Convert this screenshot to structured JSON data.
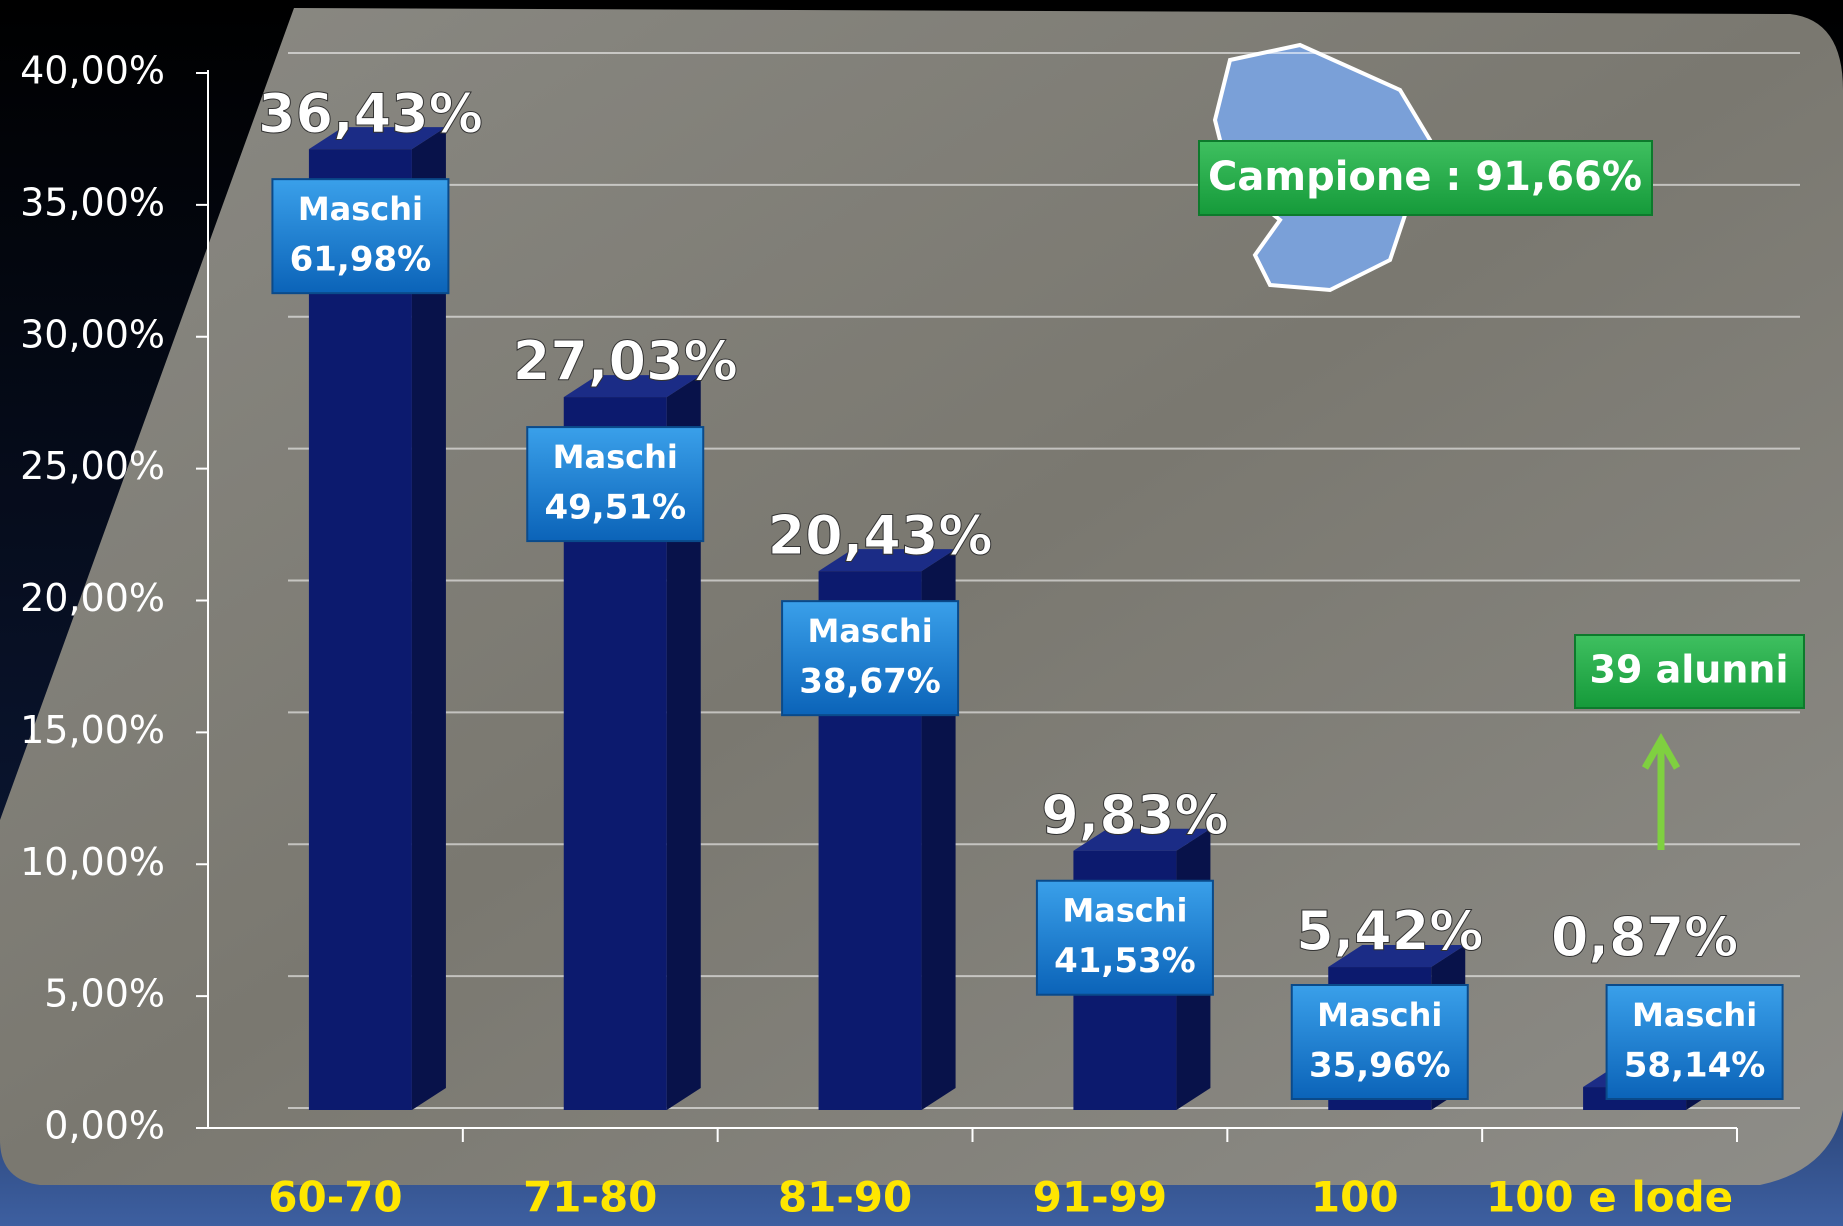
{
  "chart_data": {
    "type": "bar3d",
    "categories": [
      "60-70",
      "71-80",
      "81-90",
      "91-99",
      "100",
      "100 e lode"
    ],
    "values": [
      36.43,
      27.03,
      20.43,
      9.83,
      5.42,
      0.87
    ],
    "value_labels": [
      "36,43%",
      "27,03%",
      "20,43%",
      "9,83%",
      "5,42%",
      "0,87%"
    ],
    "color": "#0c1a6e",
    "males": {
      "name": "Maschi",
      "values": [
        61.98,
        49.51,
        38.67,
        41.53,
        35.96,
        58.14
      ],
      "value_labels": [
        "61,98%",
        "49,51%",
        "38,67%",
        "41,53%",
        "35,96%",
        "58,14%"
      ]
    },
    "ylim": [
      0,
      40
    ],
    "yticks": [
      {
        "value": 0,
        "label": "0,00%"
      },
      {
        "value": 5,
        "label": "5,00%"
      },
      {
        "value": 10,
        "label": "10,00%"
      },
      {
        "value": 15,
        "label": "15,00%"
      },
      {
        "value": 20,
        "label": "20,00%"
      },
      {
        "value": 25,
        "label": "25,00%"
      },
      {
        "value": 30,
        "label": "30,00%"
      },
      {
        "value": 35,
        "label": "35,00%"
      },
      {
        "value": 40,
        "label": "40,00%"
      }
    ],
    "grid": true,
    "annotations": [
      "Campione : 91,66%",
      "39 alunni"
    ]
  }
}
